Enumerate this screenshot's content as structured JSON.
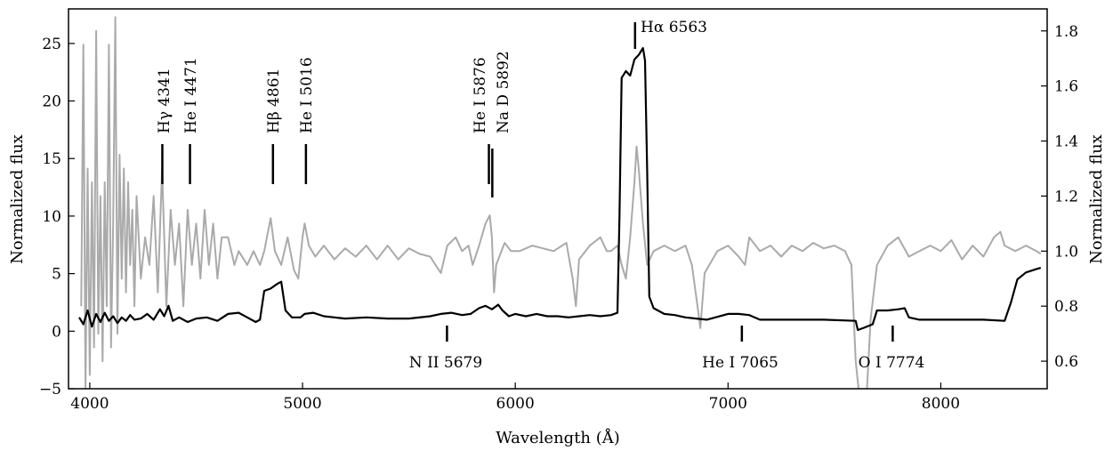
{
  "chart_data": {
    "type": "line",
    "title": "",
    "xlabel": "Wavelength (Å)",
    "ylabel_left": "Normalized flux",
    "ylabel_right": "Normalized flux",
    "xlim": [
      3900,
      8500
    ],
    "ylim_left": [
      -5,
      28
    ],
    "ylim_right": [
      0.5,
      1.88
    ],
    "x_ticks": [
      4000,
      5000,
      6000,
      7000,
      8000
    ],
    "y_ticks_left": [
      -5,
      0,
      5,
      10,
      15,
      20,
      25
    ],
    "y_ticks_right": [
      0.6,
      0.8,
      1.0,
      1.2,
      1.4,
      1.6,
      1.8
    ],
    "grid": false,
    "legend": "none",
    "colors": {
      "black_series": "#000000",
      "grey_series": "#aaaaaa"
    },
    "series": [
      {
        "axis": "left",
        "color": "#000000",
        "points": [
          [
            3950,
            1.2
          ],
          [
            3970,
            0.6
          ],
          [
            3990,
            1.8
          ],
          [
            4010,
            0.4
          ],
          [
            4030,
            1.5
          ],
          [
            4050,
            0.8
          ],
          [
            4070,
            1.6
          ],
          [
            4090,
            0.9
          ],
          [
            4110,
            1.3
          ],
          [
            4130,
            0.7
          ],
          [
            4150,
            1.2
          ],
          [
            4170,
            0.9
          ],
          [
            4190,
            1.4
          ],
          [
            4210,
            1.0
          ],
          [
            4240,
            1.1
          ],
          [
            4270,
            1.5
          ],
          [
            4300,
            1.0
          ],
          [
            4330,
            1.9
          ],
          [
            4350,
            1.3
          ],
          [
            4370,
            2.2
          ],
          [
            4390,
            0.9
          ],
          [
            4420,
            1.2
          ],
          [
            4460,
            0.8
          ],
          [
            4500,
            1.1
          ],
          [
            4550,
            1.2
          ],
          [
            4600,
            0.9
          ],
          [
            4650,
            1.5
          ],
          [
            4700,
            1.6
          ],
          [
            4740,
            1.2
          ],
          [
            4780,
            0.8
          ],
          [
            4800,
            1.0
          ],
          [
            4820,
            3.5
          ],
          [
            4850,
            3.7
          ],
          [
            4880,
            4.1
          ],
          [
            4900,
            4.3
          ],
          [
            4920,
            1.8
          ],
          [
            4950,
            1.2
          ],
          [
            4990,
            1.2
          ],
          [
            5010,
            1.5
          ],
          [
            5050,
            1.6
          ],
          [
            5100,
            1.3
          ],
          [
            5150,
            1.2
          ],
          [
            5200,
            1.1
          ],
          [
            5300,
            1.2
          ],
          [
            5400,
            1.1
          ],
          [
            5500,
            1.1
          ],
          [
            5600,
            1.3
          ],
          [
            5650,
            1.5
          ],
          [
            5700,
            1.6
          ],
          [
            5750,
            1.4
          ],
          [
            5790,
            1.5
          ],
          [
            5830,
            2.0
          ],
          [
            5860,
            2.2
          ],
          [
            5890,
            1.9
          ],
          [
            5920,
            2.3
          ],
          [
            5940,
            1.8
          ],
          [
            5970,
            1.3
          ],
          [
            6000,
            1.5
          ],
          [
            6050,
            1.3
          ],
          [
            6100,
            1.5
          ],
          [
            6150,
            1.3
          ],
          [
            6200,
            1.3
          ],
          [
            6250,
            1.2
          ],
          [
            6300,
            1.3
          ],
          [
            6350,
            1.4
          ],
          [
            6400,
            1.3
          ],
          [
            6450,
            1.4
          ],
          [
            6480,
            1.6
          ],
          [
            6490,
            10.0
          ],
          [
            6500,
            22.0
          ],
          [
            6520,
            22.6
          ],
          [
            6540,
            22.2
          ],
          [
            6560,
            23.6
          ],
          [
            6580,
            24.0
          ],
          [
            6600,
            24.6
          ],
          [
            6610,
            23.5
          ],
          [
            6620,
            14.0
          ],
          [
            6630,
            3.0
          ],
          [
            6650,
            2.0
          ],
          [
            6700,
            1.5
          ],
          [
            6750,
            1.4
          ],
          [
            6800,
            1.2
          ],
          [
            6850,
            1.1
          ],
          [
            6900,
            1.0
          ],
          [
            7000,
            1.5
          ],
          [
            7050,
            1.5
          ],
          [
            7100,
            1.4
          ],
          [
            7150,
            1.0
          ],
          [
            7300,
            1.0
          ],
          [
            7450,
            1.0
          ],
          [
            7600,
            0.9
          ],
          [
            7610,
            0.1
          ],
          [
            7640,
            0.3
          ],
          [
            7680,
            0.6
          ],
          [
            7700,
            1.8
          ],
          [
            7750,
            1.8
          ],
          [
            7800,
            1.9
          ],
          [
            7830,
            2.0
          ],
          [
            7850,
            1.2
          ],
          [
            7900,
            1.0
          ],
          [
            8000,
            1.0
          ],
          [
            8100,
            1.0
          ],
          [
            8200,
            1.0
          ],
          [
            8300,
            0.9
          ],
          [
            8330,
            2.5
          ],
          [
            8360,
            4.5
          ],
          [
            8400,
            5.1
          ],
          [
            8450,
            5.4
          ],
          [
            8470,
            5.5
          ]
        ]
      },
      {
        "axis": "right",
        "color": "#aaaaaa",
        "points": [
          [
            3960,
            0.8
          ],
          [
            3970,
            1.75
          ],
          [
            3980,
            0.5
          ],
          [
            3990,
            1.3
          ],
          [
            4000,
            0.55
          ],
          [
            4010,
            1.25
          ],
          [
            4020,
            0.65
          ],
          [
            4030,
            1.8
          ],
          [
            4040,
            0.7
          ],
          [
            4050,
            1.2
          ],
          [
            4060,
            0.6
          ],
          [
            4070,
            1.25
          ],
          [
            4080,
            0.8
          ],
          [
            4090,
            1.75
          ],
          [
            4100,
            0.65
          ],
          [
            4110,
            1.1
          ],
          [
            4120,
            1.85
          ],
          [
            4130,
            0.7
          ],
          [
            4140,
            1.35
          ],
          [
            4150,
            0.9
          ],
          [
            4160,
            1.3
          ],
          [
            4170,
            0.85
          ],
          [
            4180,
            1.25
          ],
          [
            4190,
            0.95
          ],
          [
            4200,
            1.15
          ],
          [
            4210,
            0.8
          ],
          [
            4220,
            1.2
          ],
          [
            4240,
            0.9
          ],
          [
            4260,
            1.05
          ],
          [
            4280,
            0.95
          ],
          [
            4300,
            1.2
          ],
          [
            4320,
            0.85
          ],
          [
            4340,
            1.3
          ],
          [
            4360,
            0.8
          ],
          [
            4380,
            1.15
          ],
          [
            4400,
            0.95
          ],
          [
            4420,
            1.1
          ],
          [
            4440,
            0.8
          ],
          [
            4460,
            1.15
          ],
          [
            4480,
            0.95
          ],
          [
            4500,
            1.1
          ],
          [
            4520,
            0.9
          ],
          [
            4540,
            1.15
          ],
          [
            4560,
            0.95
          ],
          [
            4580,
            1.1
          ],
          [
            4600,
            0.9
          ],
          [
            4620,
            1.05
          ],
          [
            4650,
            1.05
          ],
          [
            4680,
            0.95
          ],
          [
            4700,
            1.0
          ],
          [
            4740,
            0.95
          ],
          [
            4770,
            1.0
          ],
          [
            4800,
            0.95
          ],
          [
            4820,
            1.0
          ],
          [
            4850,
            1.12
          ],
          [
            4870,
            1.0
          ],
          [
            4900,
            0.95
          ],
          [
            4930,
            1.05
          ],
          [
            4960,
            0.93
          ],
          [
            4980,
            0.9
          ],
          [
            5000,
            1.05
          ],
          [
            5010,
            1.1
          ],
          [
            5030,
            1.02
          ],
          [
            5060,
            0.98
          ],
          [
            5100,
            1.02
          ],
          [
            5150,
            0.97
          ],
          [
            5200,
            1.01
          ],
          [
            5250,
            0.98
          ],
          [
            5300,
            1.02
          ],
          [
            5350,
            0.97
          ],
          [
            5400,
            1.02
          ],
          [
            5450,
            0.97
          ],
          [
            5500,
            1.01
          ],
          [
            5550,
            0.99
          ],
          [
            5600,
            0.98
          ],
          [
            5650,
            0.92
          ],
          [
            5680,
            1.02
          ],
          [
            5720,
            1.05
          ],
          [
            5750,
            1.0
          ],
          [
            5780,
            1.02
          ],
          [
            5800,
            0.95
          ],
          [
            5830,
            1.02
          ],
          [
            5860,
            1.1
          ],
          [
            5880,
            1.13
          ],
          [
            5890,
            1.05
          ],
          [
            5900,
            0.85
          ],
          [
            5910,
            0.95
          ],
          [
            5950,
            1.03
          ],
          [
            5980,
            1.0
          ],
          [
            6020,
            1.0
          ],
          [
            6080,
            1.02
          ],
          [
            6130,
            1.01
          ],
          [
            6180,
            1.0
          ],
          [
            6240,
            1.03
          ],
          [
            6270,
            0.9
          ],
          [
            6285,
            0.8
          ],
          [
            6300,
            0.97
          ],
          [
            6350,
            1.02
          ],
          [
            6400,
            1.05
          ],
          [
            6430,
            1.0
          ],
          [
            6450,
            1.0
          ],
          [
            6480,
            1.02
          ],
          [
            6500,
            0.95
          ],
          [
            6520,
            0.9
          ],
          [
            6540,
            1.05
          ],
          [
            6560,
            1.25
          ],
          [
            6570,
            1.38
          ],
          [
            6580,
            1.3
          ],
          [
            6600,
            1.1
          ],
          [
            6620,
            0.95
          ],
          [
            6650,
            1.0
          ],
          [
            6700,
            1.02
          ],
          [
            6750,
            1.0
          ],
          [
            6800,
            1.02
          ],
          [
            6830,
            0.95
          ],
          [
            6860,
            0.78
          ],
          [
            6870,
            0.72
          ],
          [
            6890,
            0.92
          ],
          [
            6950,
            1.0
          ],
          [
            7000,
            1.02
          ],
          [
            7050,
            0.98
          ],
          [
            7080,
            0.95
          ],
          [
            7100,
            1.05
          ],
          [
            7150,
            1.0
          ],
          [
            7200,
            1.02
          ],
          [
            7250,
            0.98
          ],
          [
            7300,
            1.02
          ],
          [
            7350,
            1.0
          ],
          [
            7400,
            1.03
          ],
          [
            7450,
            1.01
          ],
          [
            7500,
            1.02
          ],
          [
            7550,
            1.0
          ],
          [
            7580,
            0.95
          ],
          [
            7600,
            0.6
          ],
          [
            7620,
            0.45
          ],
          [
            7650,
            0.45
          ],
          [
            7670,
            0.75
          ],
          [
            7700,
            0.95
          ],
          [
            7750,
            1.02
          ],
          [
            7800,
            1.05
          ],
          [
            7850,
            0.98
          ],
          [
            7900,
            1.0
          ],
          [
            7950,
            1.02
          ],
          [
            8000,
            1.0
          ],
          [
            8050,
            1.04
          ],
          [
            8100,
            0.97
          ],
          [
            8150,
            1.02
          ],
          [
            8200,
            0.98
          ],
          [
            8250,
            1.05
          ],
          [
            8280,
            1.07
          ],
          [
            8300,
            1.02
          ],
          [
            8350,
            1.0
          ],
          [
            8400,
            1.02
          ],
          [
            8450,
            1.0
          ],
          [
            8470,
            0.99
          ]
        ]
      }
    ],
    "annotations": [
      {
        "label": "Hγ 4341",
        "x": 4341,
        "position": "above"
      },
      {
        "label": "He I 4471",
        "x": 4471,
        "position": "above"
      },
      {
        "label": "Hβ 4861",
        "x": 4861,
        "position": "above"
      },
      {
        "label": "He I 5016",
        "x": 5016,
        "position": "above"
      },
      {
        "label": "He I 5876",
        "x": 5876,
        "position": "above"
      },
      {
        "label": "Na D 5892",
        "x": 5892,
        "position": "above"
      },
      {
        "label": "Hα 6563",
        "x": 6563,
        "position": "above-horizontal"
      },
      {
        "label": "N II 5679",
        "x": 5679,
        "position": "below"
      },
      {
        "label": "He I 7065",
        "x": 7065,
        "position": "below"
      },
      {
        "label": "O I 7774",
        "x": 7774,
        "position": "below"
      }
    ]
  }
}
